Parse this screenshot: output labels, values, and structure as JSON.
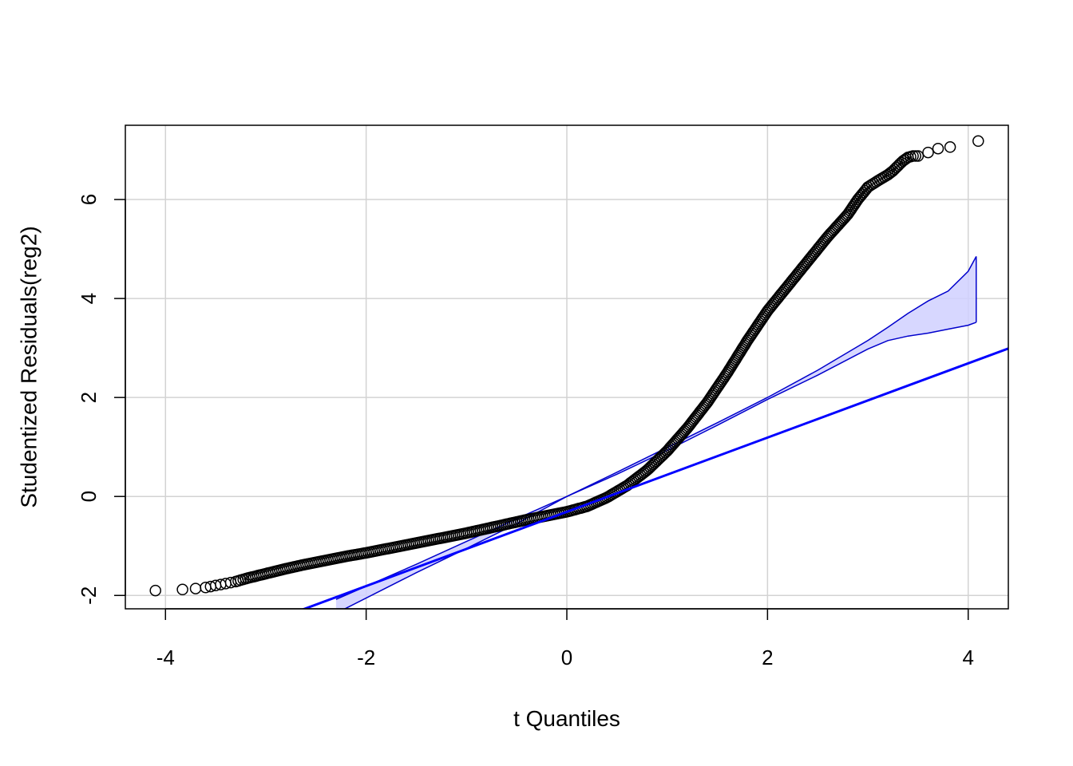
{
  "chart_data": {
    "type": "scatter",
    "title": "",
    "xlabel": "t Quantiles",
    "ylabel": "Studentized Residuals(reg2)",
    "xlim": [
      -4.4,
      4.4
    ],
    "ylim": [
      -2.27,
      7.5
    ],
    "xticks": [
      -4,
      -2,
      0,
      2,
      4
    ],
    "xtick_labels": [
      "-4",
      "-2",
      "0",
      "2",
      "4"
    ],
    "yticks": [
      -2,
      0,
      2,
      4,
      6
    ],
    "ytick_labels": [
      "-2",
      "0",
      "2",
      "4",
      "6"
    ],
    "grid": true,
    "colors": {
      "points": "#000000",
      "reference_line": "#0000ff",
      "envelope_fill": "#d0d0ff",
      "envelope_edge": "#0000cc",
      "grid": "#d3d3d3"
    },
    "series": [
      {
        "kind": "points",
        "x": [
          -4.1,
          -3.83,
          -3.7,
          -3.6,
          -3.55,
          -3.5,
          -3.45,
          -3.4,
          -3.35,
          -3.3,
          -3.25,
          -3.2,
          -3.1,
          -3.0,
          -2.9,
          -2.8,
          -2.6,
          -2.4,
          -2.2,
          -2.0,
          -1.8,
          -1.6,
          -1.4,
          -1.2,
          -1.0,
          -0.8,
          -0.6,
          -0.4,
          -0.2,
          0.0,
          0.2,
          0.4,
          0.6,
          0.8,
          1.0,
          1.2,
          1.4,
          1.6,
          1.8,
          2.0,
          2.2,
          2.4,
          2.6,
          2.8,
          2.9,
          3.0,
          3.1,
          3.2,
          3.25,
          3.3,
          3.35,
          3.4,
          3.45,
          3.5,
          3.6,
          3.7,
          3.82,
          4.1
        ],
        "y": [
          -1.9,
          -1.88,
          -1.86,
          -1.84,
          -1.82,
          -1.8,
          -1.78,
          -1.76,
          -1.74,
          -1.72,
          -1.69,
          -1.66,
          -1.61,
          -1.56,
          -1.51,
          -1.46,
          -1.37,
          -1.29,
          -1.21,
          -1.14,
          -1.06,
          -0.98,
          -0.9,
          -0.82,
          -0.74,
          -0.65,
          -0.56,
          -0.47,
          -0.39,
          -0.31,
          -0.2,
          -0.02,
          0.22,
          0.53,
          0.92,
          1.38,
          1.9,
          2.5,
          3.15,
          3.75,
          4.25,
          4.75,
          5.25,
          5.7,
          6.0,
          6.25,
          6.38,
          6.5,
          6.58,
          6.68,
          6.78,
          6.85,
          6.88,
          6.88,
          6.95,
          7.03,
          7.06,
          7.18
        ]
      },
      {
        "kind": "reference_line",
        "intercept": -0.31,
        "slope": 0.75
      },
      {
        "kind": "envelope",
        "x": [
          -2.3,
          -1.5,
          -1.0,
          -0.5,
          0.0,
          0.5,
          1.0,
          1.5,
          2.0,
          2.5,
          3.0,
          3.2,
          3.4,
          3.6,
          3.8,
          4.0,
          4.08
        ],
        "upper": [
          -2.08,
          -1.37,
          -0.91,
          -0.45,
          0.0,
          0.49,
          0.99,
          1.49,
          2.0,
          2.55,
          3.15,
          3.42,
          3.7,
          3.95,
          4.15,
          4.55,
          4.85
        ],
        "lower": [
          -2.36,
          -1.54,
          -1.05,
          -0.55,
          0.0,
          0.45,
          0.93,
          1.44,
          1.96,
          2.45,
          2.98,
          3.15,
          3.24,
          3.3,
          3.38,
          3.46,
          3.52
        ]
      }
    ]
  }
}
